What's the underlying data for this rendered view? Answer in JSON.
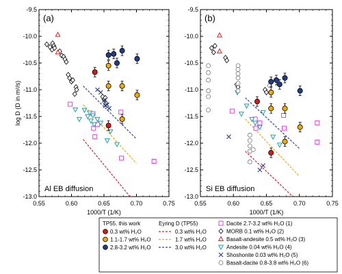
{
  "chart_data": [
    {
      "type": "scatter",
      "panel_label": "(a)",
      "annotation": "Al EB diffusion",
      "xlabel": "1000/T (1/K)",
      "ylabel": "log D (D in m²/s)",
      "xlim": [
        0.55,
        0.75
      ],
      "ylim": [
        -13.0,
        -9.5
      ],
      "x_ticks": [
        "0.55",
        "0.60",
        "0.65",
        "0.70",
        "0.75"
      ],
      "y_ticks": [
        "-9.5",
        "-10.0",
        "-10.5",
        "-11.0",
        "-11.5",
        "-12.0",
        "-12.5",
        "-13.0"
      ],
      "this_work": [
        {
          "series": "0.3 wt% H2O",
          "points": [
            [
              0.636,
              -10.67
            ],
            [
              0.657,
              -11.67
            ]
          ]
        },
        {
          "series": "1.1-1.7 wt% H2O",
          "points": [
            [
              0.657,
              -10.55
            ],
            [
              0.657,
              -10.93
            ],
            [
              0.678,
              -10.93
            ],
            [
              0.678,
              -11.55
            ],
            [
              0.701,
              -11.1
            ]
          ]
        },
        {
          "series": "2.8-3.2 wt% H2O",
          "points": [
            [
              0.657,
              -10.35
            ],
            [
              0.665,
              -10.33
            ],
            [
              0.678,
              -10.27
            ],
            [
              0.67,
              -10.5
            ],
            [
              0.701,
              -10.42
            ]
          ]
        }
      ],
      "eyring": [
        {
          "series": "0.3 wt% H2O",
          "x": [
            0.618,
            0.69
          ],
          "y": [
            -11.93,
            -13.0
          ]
        },
        {
          "series": "1.7 wt% H2O",
          "x": [
            0.618,
            0.7
          ],
          "y": [
            -11.28,
            -12.38
          ]
        },
        {
          "series": "3.0 wt% H2O",
          "x": [
            0.618,
            0.7
          ],
          "y": [
            -10.93,
            -11.92
          ]
        }
      ],
      "literature": [
        {
          "series": "Dacite 2.7-3.2 wt% H2O (1)",
          "points": [
            [
              0.598,
              -11.27
            ],
            [
              0.633,
              -11.45
            ],
            [
              0.634,
              -11.72
            ],
            [
              0.636,
              -11.88
            ],
            [
              0.64,
              -11.65
            ],
            [
              0.676,
              -11.42
            ],
            [
              0.677,
              -12.28
            ],
            [
              0.727,
              -12.34
            ]
          ]
        },
        {
          "series": "MORB 0.1 wt% H2O (2)",
          "points": [
            [
              0.562,
              -10.15
            ],
            [
              0.567,
              -10.2
            ],
            [
              0.57,
              -10.25
            ],
            [
              0.571,
              -10.13
            ],
            [
              0.573,
              -10.18
            ],
            [
              0.574,
              -10.22
            ],
            [
              0.582,
              -10.28
            ],
            [
              0.585,
              -10.36
            ],
            [
              0.588,
              -10.38
            ],
            [
              0.59,
              -10.43
            ],
            [
              0.592,
              -10.48
            ],
            [
              0.595,
              -10.72
            ],
            [
              0.597,
              -10.78
            ],
            [
              0.6,
              -10.85
            ],
            [
              0.602,
              -10.82
            ],
            [
              0.605,
              -11.08
            ],
            [
              0.607,
              -10.95
            ],
            [
              0.608,
              -11.0
            ],
            [
              0.648,
              -11.13
            ],
            [
              0.65,
              -11.18
            ],
            [
              0.652,
              -11.15
            ],
            [
              0.653,
              -11.25
            ]
          ]
        },
        {
          "series": "Basalt-andesite 0.5 wt% H2O (3)",
          "points": [
            [
              0.579,
              -9.97
            ],
            [
              0.579,
              -10.3
            ]
          ]
        },
        {
          "series": "Andesite 0.04 wt% H2O (4)",
          "points": [
            [
              0.606,
              -11.37
            ],
            [
              0.612,
              -11.55
            ],
            [
              0.62,
              -11.38
            ],
            [
              0.625,
              -11.5
            ],
            [
              0.628,
              -11.43
            ],
            [
              0.63,
              -11.58
            ],
            [
              0.633,
              -11.48
            ],
            [
              0.635,
              -11.65
            ],
            [
              0.64,
              -11.55
            ],
            [
              0.645,
              -11.62
            ],
            [
              0.655,
              -11.95
            ],
            [
              0.66,
              -11.78
            ],
            [
              0.67,
              -12.02
            ]
          ]
        },
        {
          "series": "Shoshonite 0.03 wt% H2O (5)",
          "points": [
            [
              0.64,
              -11.0
            ],
            [
              0.645,
              -11.05
            ],
            [
              0.65,
              -11.2
            ],
            [
              0.652,
              -11.3
            ],
            [
              0.655,
              -11.28
            ],
            [
              0.658,
              -11.35
            ]
          ]
        }
      ]
    },
    {
      "type": "scatter",
      "panel_label": "(b)",
      "annotation": "Si EB diffusion",
      "xlabel": "1000/T (1/K)",
      "ylabel": "",
      "xlim": [
        0.55,
        0.75
      ],
      "ylim": [
        -13.0,
        -9.5
      ],
      "x_ticks": [
        "0.55",
        "0.60",
        "0.65",
        "0.70",
        "0.75"
      ],
      "y_ticks": [
        "-9.5",
        "-10.0",
        "-10.5",
        "-11.0",
        "-11.5",
        "-12.0",
        "-12.5",
        "-13.0"
      ],
      "this_work": [
        {
          "series": "0.3 wt% H2O",
          "points": [
            [
              0.636,
              -11.22
            ],
            [
              0.657,
              -12.18
            ]
          ]
        },
        {
          "series": "1.1-1.7 wt% H2O",
          "points": [
            [
              0.657,
              -11.05
            ],
            [
              0.657,
              -11.35
            ],
            [
              0.678,
              -11.35
            ],
            [
              0.678,
              -11.97
            ],
            [
              0.701,
              -11.7
            ]
          ]
        },
        {
          "series": "2.8-3.2 wt% H2O",
          "points": [
            [
              0.657,
              -10.85
            ],
            [
              0.665,
              -10.82
            ],
            [
              0.678,
              -10.78
            ],
            [
              0.67,
              -10.9
            ],
            [
              0.701,
              -11.02
            ]
          ]
        }
      ],
      "eyring": [
        {
          "series": "0.3 wt% H2O",
          "x": [
            0.618,
            0.69
          ],
          "y": [
            -12.15,
            -13.0
          ]
        },
        {
          "series": "1.7 wt% H2O",
          "x": [
            0.618,
            0.7
          ],
          "y": [
            -11.55,
            -12.62
          ]
        },
        {
          "series": "3.0 wt% H2O",
          "x": [
            0.618,
            0.7
          ],
          "y": [
            -11.15,
            -12.1
          ]
        }
      ],
      "literature": [
        {
          "series": "Dacite 2.7-3.2 wt% H2O (1)",
          "points": [
            [
              0.598,
              -11.4
            ],
            [
              0.633,
              -11.55
            ],
            [
              0.634,
              -11.72
            ],
            [
              0.64,
              -11.62
            ],
            [
              0.676,
              -11.48
            ],
            [
              0.677,
              -11.72
            ],
            [
              0.727,
              -11.62
            ],
            [
              0.727,
              -11.98
            ]
          ]
        },
        {
          "series": "MORB 0.1 wt% H2O (2)",
          "points": [
            [
              0.567,
              -10.22
            ],
            [
              0.57,
              -10.3
            ],
            [
              0.572,
              -10.18
            ],
            [
              0.588,
              -10.4
            ],
            [
              0.59,
              -10.45
            ],
            [
              0.605,
              -10.9
            ],
            [
              0.607,
              -10.95
            ],
            [
              0.648,
              -11.0
            ],
            [
              0.65,
              -11.05
            ]
          ]
        },
        {
          "series": "Basalt-andesite 0.5 wt% H2O (3)",
          "points": [
            [
              0.579,
              -9.98
            ],
            [
              0.579,
              -10.28
            ]
          ]
        },
        {
          "series": "Andesite 0.04 wt% H2O (4)",
          "points": [
            [
              0.606,
              -11.05
            ],
            [
              0.612,
              -11.45
            ],
            [
              0.62,
              -11.3
            ],
            [
              0.628,
              -11.55
            ],
            [
              0.633,
              -11.62
            ],
            [
              0.64,
              -11.7
            ],
            [
              0.645,
              -11.42
            ],
            [
              0.66,
              -11.88
            ],
            [
              0.67,
              -12.03
            ]
          ]
        },
        {
          "series": "Shoshonite 0.03 wt% H2O (5)",
          "points": [
            [
              0.593,
              -11.88
            ],
            [
              0.64,
              -12.5
            ],
            [
              0.645,
              -12.42
            ]
          ]
        },
        {
          "series": "Basalt-dacite 0.8-3.8 wt% H2O (6)",
          "points": [
            [
              0.562,
              -10.55
            ],
            [
              0.562,
              -10.68
            ],
            [
              0.562,
              -10.82
            ],
            [
              0.562,
              -11.02
            ],
            [
              0.562,
              -11.13
            ],
            [
              0.562,
              -11.38
            ],
            [
              0.607,
              -10.55
            ],
            [
              0.607,
              -10.62
            ],
            [
              0.607,
              -10.7
            ],
            [
              0.607,
              -10.78
            ],
            [
              0.607,
              -10.88
            ],
            [
              0.607,
              -11.02
            ],
            [
              0.625,
              -11.85
            ],
            [
              0.625,
              -11.95
            ],
            [
              0.625,
              -12.05
            ],
            [
              0.625,
              -12.15
            ],
            [
              0.625,
              -12.35
            ],
            [
              0.63,
              -12.12
            ],
            [
              0.655,
              -10.92
            ]
          ]
        }
      ]
    }
  ],
  "legend": {
    "this_work": {
      "title": "TP55. this work",
      "items": [
        {
          "label": "0.3 wt% H₂O",
          "color": "#d7191c"
        },
        {
          "label": "1.1-1.7 wt% H₂O",
          "color": "#f5a800"
        },
        {
          "label": "2.8-3.2 wt% H₂O",
          "color": "#1f3b8a"
        }
      ]
    },
    "eyring": {
      "title": "Eyring D (TP55)",
      "items": [
        {
          "label": "0.3 wt% H₂O",
          "color": "#e41a1c"
        },
        {
          "label": "1.7 wt% H₂O",
          "color": "#f5a800"
        },
        {
          "label": "3.0 wt% H₂O",
          "color": "#2d3fb5"
        }
      ]
    },
    "literature": {
      "items": [
        {
          "label": "Dacite 2.7-3.2 wt% H₂O (1)",
          "marker": "square",
          "color": "#e040e0"
        },
        {
          "label": "MORB 0.1 wt% H₂O (2)",
          "marker": "diamond",
          "color": "#000000"
        },
        {
          "label": "Basalt-andesite 0.5 wt% H₂O (3)",
          "marker": "triangle-up",
          "color": "#e41a1c"
        },
        {
          "label": "Andesite 0.04 wt% H₂O (4)",
          "marker": "triangle-down",
          "color": "#19a6a6"
        },
        {
          "label": "Shoshonite 0.03 wt% H₂O (5)",
          "marker": "x",
          "color": "#1f3b8a"
        },
        {
          "label": "Basalt-dacite 0.8-3.8 wt% H₂O (6)",
          "marker": "circle",
          "color": "#777777"
        }
      ]
    }
  }
}
